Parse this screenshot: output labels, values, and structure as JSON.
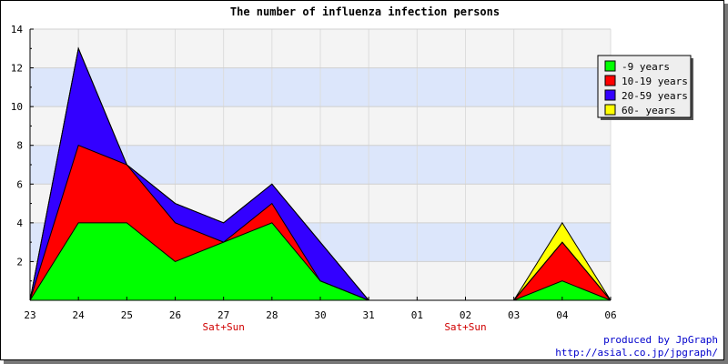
{
  "chart_data": {
    "type": "area",
    "title": "The number of influenza infection persons",
    "xlabel": "",
    "ylabel": "",
    "categories": [
      "23",
      "24",
      "25",
      "26",
      "27",
      "28",
      "30",
      "31",
      "01",
      "02",
      "03",
      "04",
      "06"
    ],
    "weekend_labels": [
      {
        "index": 4,
        "text": "Sat+Sun"
      },
      {
        "index": 9,
        "text": "Sat+Sun"
      }
    ],
    "ylim": [
      0,
      14
    ],
    "yticks": [
      2,
      4,
      6,
      8,
      10,
      12,
      14
    ],
    "stacked": true,
    "series": [
      {
        "name": "-9 years",
        "color": "#00ff00",
        "values": [
          0,
          4,
          4,
          2,
          3,
          4,
          1,
          0,
          0,
          0,
          0,
          1,
          0
        ]
      },
      {
        "name": "10-19 years",
        "color": "#ff0000",
        "values": [
          0,
          4,
          3,
          2,
          0,
          1,
          0,
          0,
          0,
          0,
          0,
          2,
          0
        ]
      },
      {
        "name": "20-59 years",
        "color": "#3300ff",
        "values": [
          0,
          5,
          0,
          1,
          1,
          1,
          2,
          0,
          0,
          0,
          0,
          0,
          0
        ]
      },
      {
        "name": "60- years",
        "color": "#ffff00",
        "values": [
          0,
          0,
          0,
          0,
          0,
          0,
          0,
          0,
          0,
          0,
          0,
          1,
          0
        ]
      }
    ],
    "grid": true,
    "legend_position": "top-right",
    "credit_line1": "produced by JpGraph",
    "credit_line2": "http://asial.co.jp/jpgraph/"
  }
}
